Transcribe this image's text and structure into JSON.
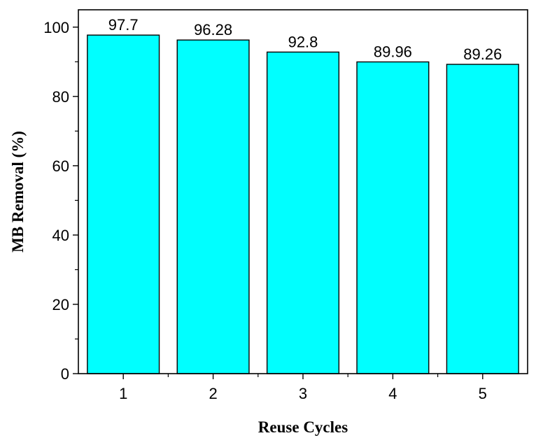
{
  "chart_data": {
    "type": "bar",
    "categories": [
      "1",
      "2",
      "3",
      "4",
      "5"
    ],
    "values": [
      97.7,
      96.28,
      92.8,
      89.96,
      89.26
    ],
    "data_labels": [
      "97.7",
      "96.28",
      "92.8",
      "89.96",
      "89.26"
    ],
    "xlabel": "Reuse Cycles",
    "ylabel": "MB Removal (%)",
    "ylim": [
      0,
      105
    ],
    "yticks": [
      0,
      20,
      40,
      60,
      80,
      100
    ],
    "grid": false,
    "legend": "none",
    "bar_color": "#00ffff",
    "bar_edge_color": "#000000"
  }
}
